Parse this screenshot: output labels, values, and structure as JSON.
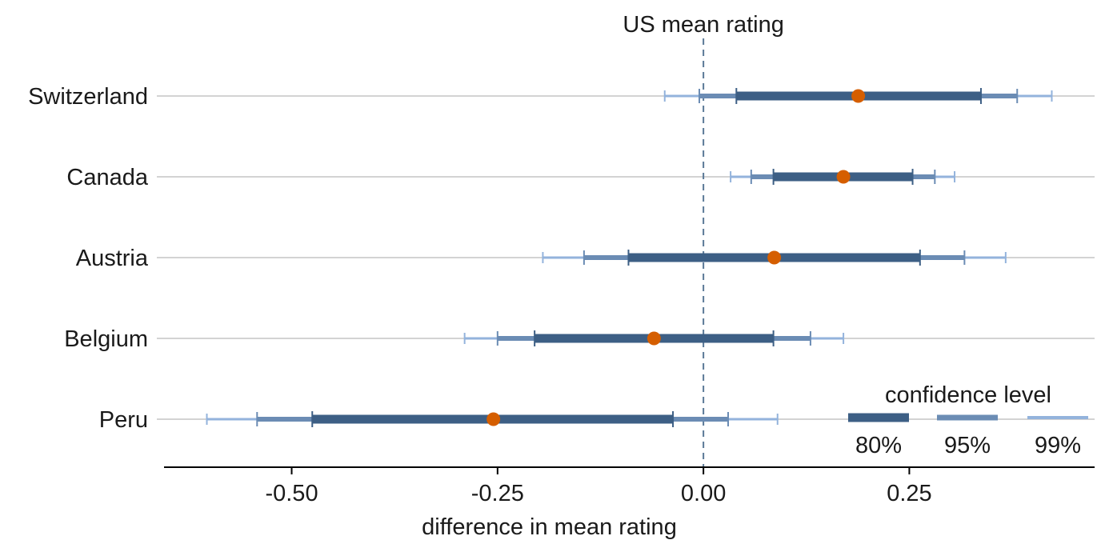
{
  "chart_data": {
    "type": "interval-dot",
    "title": "",
    "xlabel": "difference in mean rating",
    "ylabel": "",
    "xlim": [
      -0.655,
      0.475
    ],
    "x_ticks": [
      -0.5,
      -0.25,
      0.0,
      0.25
    ],
    "x_tick_labels": [
      "-0.50",
      "-0.25",
      "0.00",
      "0.25"
    ],
    "grid": "horizontal lines at each category",
    "reference_line": {
      "x": 0.0,
      "label": "US mean rating",
      "style": "dashed",
      "color": "#5a7896"
    },
    "point_color": "#d55e00",
    "categories": [
      "Switzerland",
      "Canada",
      "Austria",
      "Belgium",
      "Peru"
    ],
    "series": [
      {
        "country": "Switzerland",
        "estimate": 0.188,
        "ci80": [
          0.04,
          0.337
        ],
        "ci95": [
          -0.005,
          0.381
        ],
        "ci99": [
          -0.047,
          0.423
        ]
      },
      {
        "country": "Canada",
        "estimate": 0.17,
        "ci80": [
          0.085,
          0.254
        ],
        "ci95": [
          0.058,
          0.281
        ],
        "ci99": [
          0.033,
          0.305
        ]
      },
      {
        "country": "Austria",
        "estimate": 0.086,
        "ci80": [
          -0.091,
          0.263
        ],
        "ci95": [
          -0.145,
          0.317
        ],
        "ci99": [
          -0.195,
          0.367
        ]
      },
      {
        "country": "Belgium",
        "estimate": -0.06,
        "ci80": [
          -0.205,
          0.085
        ],
        "ci95": [
          -0.25,
          0.13
        ],
        "ci99": [
          -0.29,
          0.17
        ]
      },
      {
        "country": "Peru",
        "estimate": -0.255,
        "ci80": [
          -0.475,
          -0.037
        ],
        "ci95": [
          -0.542,
          0.03
        ],
        "ci99": [
          -0.603,
          0.09
        ]
      }
    ],
    "legend": {
      "title": "confidence level",
      "placement": "bottom-right",
      "entries": [
        {
          "label": "80%",
          "color": "#3d5f85"
        },
        {
          "label": "95%",
          "color": "#6b8cb4"
        },
        {
          "label": "99%",
          "color": "#93b3dc"
        }
      ]
    }
  }
}
